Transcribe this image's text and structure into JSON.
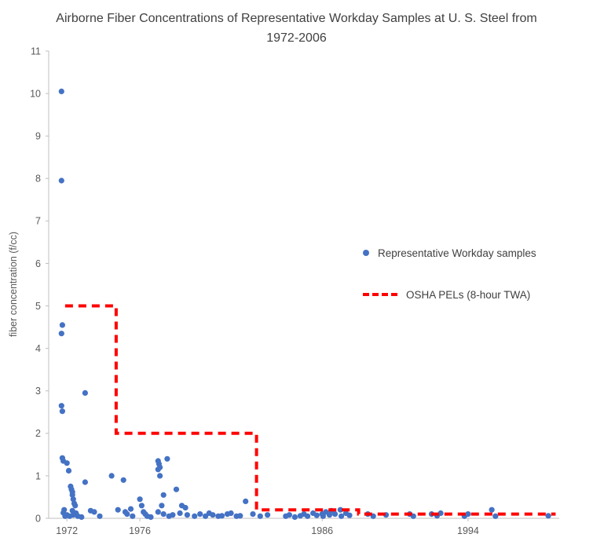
{
  "chart_data": {
    "type": "scatter",
    "title": "Airborne Fiber Concentrations of Representative Workday Samples at U. S. Steel from 1972-2006",
    "xlabel": "",
    "ylabel": "fiber concentration (f/cc)",
    "xlim": [
      1971,
      1999
    ],
    "ylim": [
      0,
      11
    ],
    "grid": false,
    "y_ticks": [
      0,
      1,
      2,
      3,
      4,
      5,
      6,
      7,
      8,
      9,
      10,
      11
    ],
    "x_ticks": [
      {
        "value": 1972,
        "label": "1972"
      },
      {
        "value": 1976,
        "label": "1976"
      },
      {
        "value": 1986,
        "label": "1986"
      },
      {
        "value": 1994,
        "label": "1994"
      }
    ],
    "axis_color": "#BFBFBF",
    "tick_label_color": "#595959",
    "legend_position": "right-middle",
    "series": [
      {
        "name": "Representative Workday samples",
        "type": "scatter",
        "color": "#4472C4",
        "marker_radius": 3.6,
        "points": [
          [
            1971.7,
            10.05
          ],
          [
            1971.7,
            7.95
          ],
          [
            1971.75,
            4.55
          ],
          [
            1971.7,
            4.35
          ],
          [
            1971.7,
            2.65
          ],
          [
            1971.75,
            2.52
          ],
          [
            1971.75,
            1.42
          ],
          [
            1971.8,
            1.35
          ],
          [
            1972.0,
            1.3
          ],
          [
            1971.8,
            0.13
          ],
          [
            1971.85,
            0.2
          ],
          [
            1971.9,
            0.05
          ],
          [
            1972.0,
            0.08
          ],
          [
            1972.1,
            1.12
          ],
          [
            1972.2,
            0.75
          ],
          [
            1972.25,
            0.68
          ],
          [
            1972.3,
            0.62
          ],
          [
            1972.3,
            0.55
          ],
          [
            1972.35,
            0.45
          ],
          [
            1972.15,
            0.05
          ],
          [
            1972.4,
            0.35
          ],
          [
            1972.45,
            0.3
          ],
          [
            1972.3,
            0.18
          ],
          [
            1972.5,
            0.12
          ],
          [
            1972.35,
            0.08
          ],
          [
            1972.6,
            0.05
          ],
          [
            1972.8,
            0.03
          ],
          [
            1973.0,
            2.95
          ],
          [
            1973.0,
            0.85
          ],
          [
            1973.3,
            0.18
          ],
          [
            1973.5,
            0.15
          ],
          [
            1973.8,
            0.05
          ],
          [
            1974.45,
            1.0
          ],
          [
            1974.8,
            0.2
          ],
          [
            1975.1,
            0.9
          ],
          [
            1975.2,
            0.15
          ],
          [
            1975.3,
            0.1
          ],
          [
            1975.5,
            0.22
          ],
          [
            1975.6,
            0.05
          ],
          [
            1976.0,
            0.45
          ],
          [
            1976.1,
            0.3
          ],
          [
            1976.2,
            0.15
          ],
          [
            1976.3,
            0.1
          ],
          [
            1976.4,
            0.05
          ],
          [
            1976.6,
            0.03
          ],
          [
            1977.0,
            1.35
          ],
          [
            1977.05,
            1.28
          ],
          [
            1977.1,
            1.2
          ],
          [
            1977.0,
            1.15
          ],
          [
            1977.1,
            1.0
          ],
          [
            1977.5,
            1.4
          ],
          [
            1977.3,
            0.55
          ],
          [
            1977.2,
            0.3
          ],
          [
            1977.0,
            0.15
          ],
          [
            1977.3,
            0.1
          ],
          [
            1977.6,
            0.05
          ],
          [
            1977.8,
            0.08
          ],
          [
            1978.0,
            0.68
          ],
          [
            1978.3,
            0.3
          ],
          [
            1978.5,
            0.25
          ],
          [
            1978.2,
            0.12
          ],
          [
            1978.6,
            0.08
          ],
          [
            1979.0,
            0.05
          ],
          [
            1979.3,
            0.1
          ],
          [
            1979.6,
            0.05
          ],
          [
            1979.8,
            0.12
          ],
          [
            1980.0,
            0.08
          ],
          [
            1980.3,
            0.05
          ],
          [
            1980.5,
            0.06
          ],
          [
            1980.8,
            0.1
          ],
          [
            1981.0,
            0.12
          ],
          [
            1981.3,
            0.05
          ],
          [
            1981.5,
            0.06
          ],
          [
            1981.8,
            0.4
          ],
          [
            1982.2,
            0.1
          ],
          [
            1982.6,
            0.05
          ],
          [
            1983.0,
            0.08
          ],
          [
            1984.0,
            0.05
          ],
          [
            1984.2,
            0.08
          ],
          [
            1984.5,
            0.03
          ],
          [
            1984.8,
            0.06
          ],
          [
            1985.0,
            0.1
          ],
          [
            1985.2,
            0.05
          ],
          [
            1985.5,
            0.12
          ],
          [
            1985.7,
            0.07
          ],
          [
            1986.0,
            0.1
          ],
          [
            1986.05,
            0.05
          ],
          [
            1986.2,
            0.15
          ],
          [
            1986.4,
            0.08
          ],
          [
            1986.5,
            0.18
          ],
          [
            1986.7,
            0.1
          ],
          [
            1987.0,
            0.2
          ],
          [
            1987.05,
            0.05
          ],
          [
            1987.3,
            0.12
          ],
          [
            1987.5,
            0.07
          ],
          [
            1988.5,
            0.1
          ],
          [
            1988.8,
            0.05
          ],
          [
            1989.5,
            0.08
          ],
          [
            1990.8,
            0.1
          ],
          [
            1991.0,
            0.05
          ],
          [
            1992.0,
            0.1
          ],
          [
            1992.3,
            0.06
          ],
          [
            1992.5,
            0.12
          ],
          [
            1993.8,
            0.05
          ],
          [
            1994.0,
            0.1
          ],
          [
            1995.3,
            0.2
          ],
          [
            1995.5,
            0.05
          ],
          [
            1998.4,
            0.06
          ]
        ]
      },
      {
        "name": "OSHA PELs (8-hour TWA)",
        "type": "step-line",
        "color": "#FF0000",
        "dashed": true,
        "line_width": 4,
        "points": [
          [
            1971.9,
            5
          ],
          [
            1974.7,
            5
          ],
          [
            1974.7,
            2
          ],
          [
            1982.4,
            2
          ],
          [
            1982.4,
            0.2
          ],
          [
            1988.0,
            0.2
          ],
          [
            1988.0,
            0.1
          ],
          [
            1998.8,
            0.1
          ]
        ]
      }
    ]
  }
}
